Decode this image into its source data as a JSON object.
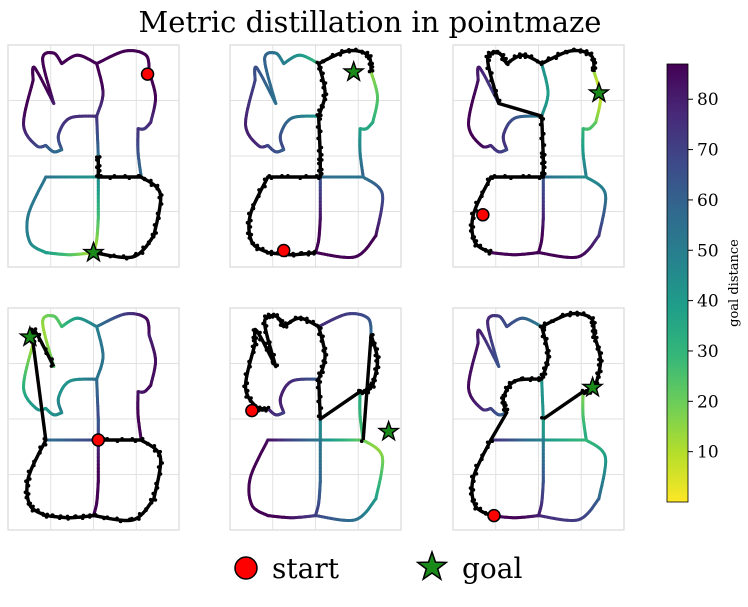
{
  "chart_data": {
    "type": "scatter",
    "title": "Metric distillation in pointmaze",
    "colorbar": {
      "label": "goal distance",
      "ticks": [
        10,
        20,
        30,
        40,
        50,
        60,
        70,
        80
      ],
      "range": [
        0,
        87
      ],
      "colormap": [
        "#fde725",
        "#b5de2b",
        "#6ece58",
        "#35b779",
        "#1f9e89",
        "#26828e",
        "#31688e",
        "#3e4989",
        "#482878",
        "#440154"
      ]
    },
    "legend": {
      "placement": "bottom-center",
      "entries": [
        {
          "label": "start",
          "marker": "circle",
          "color": "#ff0000"
        },
        {
          "label": "goal",
          "marker": "star",
          "color": "#1a8a1a"
        }
      ]
    },
    "grid": true,
    "panels": [
      {
        "start": [
          8.4,
          8.9
        ],
        "goal": [
          5.0,
          0.4
        ]
      },
      {
        "start": [
          3.0,
          0.5
        ],
        "goal": [
          7.4,
          9.0
        ]
      },
      {
        "start": [
          1.5,
          2.2
        ],
        "goal": [
          8.8,
          8.0
        ]
      },
      {
        "start": [
          5.3,
          4.0
        ],
        "goal": [
          1.0,
          8.9
        ]
      },
      {
        "start": [
          1.0,
          5.4
        ],
        "goal": [
          9.6,
          4.4
        ]
      },
      {
        "start": [
          2.2,
          0.4
        ],
        "goal": [
          8.4,
          6.5
        ]
      }
    ]
  }
}
